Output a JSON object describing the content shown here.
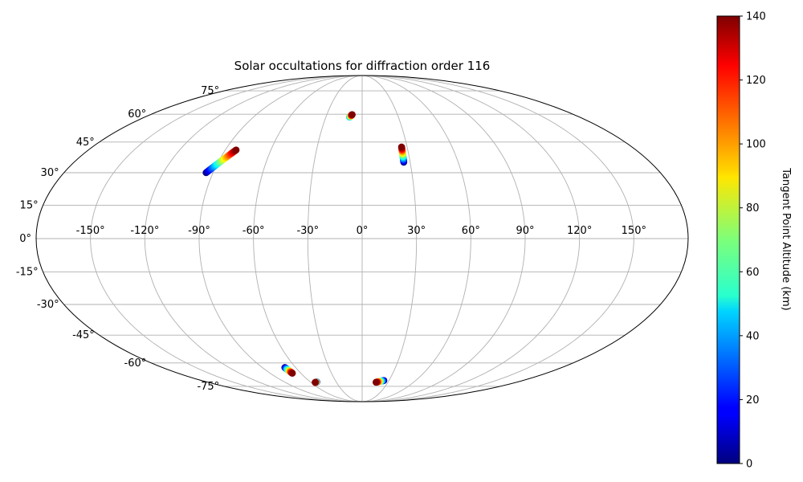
{
  "chart_data": {
    "type": "scatter",
    "projection": "mollweide",
    "title": "Solar occultations for diffraction order 116",
    "lon_tick_labels": [
      "-150°",
      "-120°",
      "-90°",
      "-60°",
      "-30°",
      "0°",
      "30°",
      "60°",
      "90°",
      "120°",
      "150°"
    ],
    "lon_ticks": [
      -150,
      -120,
      -90,
      -60,
      -30,
      0,
      30,
      60,
      90,
      120,
      150
    ],
    "lat_tick_labels": [
      "-75°",
      "-60°",
      "-45°",
      "-30°",
      "-15°",
      "0°",
      "15°",
      "30°",
      "45°",
      "60°",
      "75°"
    ],
    "lat_ticks": [
      -75,
      -60,
      -45,
      -30,
      -15,
      0,
      15,
      30,
      45,
      60,
      75
    ],
    "grid": true,
    "colorbar": {
      "label": "Tangent Point Altitude (km)",
      "colormap": "jet",
      "range": [
        0,
        140
      ],
      "tick_labels": [
        "0",
        "20",
        "40",
        "60",
        "80",
        "100",
        "120",
        "140"
      ],
      "ticks": [
        0,
        20,
        40,
        60,
        80,
        100,
        120,
        140
      ]
    },
    "series": [
      {
        "lon_start": -94.2,
        "lat_start": 30.0,
        "lon_end": -82.9,
        "lat_end": 41.0,
        "alt_start": 0,
        "alt_end": 140
      },
      {
        "lon_start": -10.4,
        "lat_start": 58.4,
        "lon_end": -8.5,
        "lat_end": 59.8,
        "alt_start": 40,
        "alt_end": 140
      },
      {
        "lon_start": 26.0,
        "lat_start": 35.0,
        "lon_end": 26.3,
        "lat_end": 42.5,
        "alt_start": 0,
        "alt_end": 140
      },
      {
        "lon_start": -69.7,
        "lat_start": -62.7,
        "lon_end": -68.3,
        "lat_end": -66.2,
        "alt_start": 0,
        "alt_end": 140
      },
      {
        "lon_start": -52.6,
        "lat_start": -71.9,
        "lon_end": -55.0,
        "lat_end": -72.2,
        "alt_start": 0,
        "alt_end": 140
      },
      {
        "lon_start": 24.3,
        "lat_start": -70.9,
        "lon_end": 16.2,
        "lat_end": -72.1,
        "alt_start": 0,
        "alt_end": 140
      }
    ]
  }
}
